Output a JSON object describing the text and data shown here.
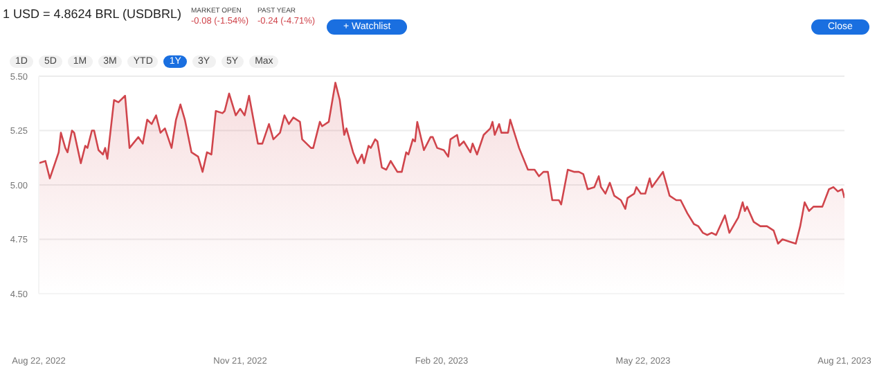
{
  "chart_data": {
    "type": "area",
    "title": "1 USD = 4.8624 BRL (USDBRL)",
    "annotations": [
      "MARKET OPEN",
      "-0.08 (-1.54%)",
      "PAST YEAR",
      "-0.24 (-4.71%)",
      "+ Watchlist",
      "Close",
      "1D",
      "5D",
      "1M",
      "3M",
      "YTD",
      "1Y",
      "3Y",
      "5Y",
      "Max"
    ],
    "x": [
      "2022-08-22",
      "2022-08-25",
      "2022-08-27",
      "2022-08-31",
      "2022-09-01",
      "2022-09-03",
      "2022-09-04",
      "2022-09-06",
      "2022-09-07",
      "2022-09-10",
      "2022-09-12",
      "2022-09-13",
      "2022-09-15",
      "2022-09-16",
      "2022-09-18",
      "2022-09-20",
      "2022-09-21",
      "2022-09-22",
      "2022-09-25",
      "2022-09-27",
      "2022-09-30",
      "2022-10-02",
      "2022-10-06",
      "2022-10-08",
      "2022-10-10",
      "2022-10-12",
      "2022-10-14",
      "2022-10-16",
      "2022-10-18",
      "2022-10-21",
      "2022-10-23",
      "2022-10-25",
      "2022-10-27",
      "2022-10-30",
      "2022-11-02",
      "2022-11-04",
      "2022-11-06",
      "2022-11-08",
      "2022-11-10",
      "2022-11-13",
      "2022-11-14",
      "2022-11-16",
      "2022-11-19",
      "2022-11-21",
      "2022-11-23",
      "2022-11-25",
      "2022-11-29",
      "2022-12-01",
      "2022-12-04",
      "2022-12-06",
      "2022-12-09",
      "2022-12-11",
      "2022-12-13",
      "2022-12-15",
      "2022-12-18",
      "2022-12-19",
      "2022-12-21",
      "2022-12-23",
      "2022-12-24",
      "2022-12-27",
      "2022-12-28",
      "2022-12-31",
      "2023-01-03",
      "2023-01-05",
      "2023-01-07",
      "2023-01-08",
      "2023-01-11",
      "2023-01-13",
      "2023-01-15",
      "2023-01-16",
      "2023-01-18",
      "2023-01-19",
      "2023-01-21",
      "2023-01-22",
      "2023-01-24",
      "2023-01-26",
      "2023-01-28",
      "2023-01-31",
      "2023-02-02",
      "2023-02-04",
      "2023-02-05",
      "2023-02-07",
      "2023-02-08",
      "2023-02-09",
      "2023-02-12",
      "2023-02-15",
      "2023-02-16",
      "2023-02-18",
      "2023-02-21",
      "2023-02-23",
      "2023-02-24",
      "2023-02-27",
      "2023-02-28",
      "2023-03-02",
      "2023-03-05",
      "2023-03-06",
      "2023-03-08",
      "2023-03-11",
      "2023-03-14",
      "2023-03-15",
      "2023-03-16",
      "2023-03-18",
      "2023-03-19",
      "2023-03-22",
      "2023-03-23",
      "2023-03-27",
      "2023-03-31",
      "2023-04-03",
      "2023-04-05",
      "2023-04-07",
      "2023-04-09",
      "2023-04-11",
      "2023-04-14",
      "2023-04-15",
      "2023-04-18",
      "2023-04-21",
      "2023-04-23",
      "2023-04-25",
      "2023-04-27",
      "2023-04-30",
      "2023-05-02",
      "2023-05-03",
      "2023-05-05",
      "2023-05-07",
      "2023-05-09",
      "2023-05-12",
      "2023-05-14",
      "2023-05-15",
      "2023-05-18",
      "2023-05-19",
      "2023-05-21",
      "2023-05-23",
      "2023-05-25",
      "2023-05-26",
      "2023-05-31",
      "2023-06-03",
      "2023-06-06",
      "2023-06-08",
      "2023-06-11",
      "2023-06-14",
      "2023-06-16",
      "2023-06-18",
      "2023-06-20",
      "2023-06-22",
      "2023-06-24",
      "2023-06-28",
      "2023-06-30",
      "2023-07-04",
      "2023-07-06",
      "2023-07-07",
      "2023-07-08",
      "2023-07-11",
      "2023-07-14",
      "2023-07-17",
      "2023-07-20",
      "2023-07-22",
      "2023-07-24",
      "2023-07-27",
      "2023-07-30",
      "2023-08-01",
      "2023-08-03",
      "2023-08-05",
      "2023-08-07",
      "2023-08-11",
      "2023-08-14",
      "2023-08-16",
      "2023-08-18",
      "2023-08-20",
      "2023-08-21"
    ],
    "series": [
      {
        "color": "#d0454c",
        "values": [
          5.1,
          5.11,
          5.03,
          5.15,
          5.24,
          5.17,
          5.15,
          5.25,
          5.24,
          5.1,
          5.18,
          5.17,
          5.25,
          5.25,
          5.16,
          5.14,
          5.17,
          5.12,
          5.39,
          5.38,
          5.41,
          5.17,
          5.22,
          5.19,
          5.3,
          5.28,
          5.32,
          5.24,
          5.26,
          5.17,
          5.3,
          5.37,
          5.3,
          5.15,
          5.13,
          5.06,
          5.15,
          5.14,
          5.34,
          5.33,
          5.34,
          5.42,
          5.32,
          5.35,
          5.32,
          5.41,
          5.19,
          5.19,
          5.28,
          5.21,
          5.24,
          5.32,
          5.28,
          5.31,
          5.29,
          5.21,
          5.19,
          5.17,
          5.17,
          5.29,
          5.27,
          5.29,
          5.47,
          5.39,
          5.23,
          5.26,
          5.15,
          5.1,
          5.14,
          5.1,
          5.18,
          5.17,
          5.21,
          5.2,
          5.08,
          5.07,
          5.11,
          5.06,
          5.06,
          5.15,
          5.14,
          5.21,
          5.2,
          5.29,
          5.16,
          5.22,
          5.22,
          5.17,
          5.16,
          5.13,
          5.21,
          5.23,
          5.18,
          5.2,
          5.15,
          5.19,
          5.14,
          5.23,
          5.26,
          5.29,
          5.23,
          5.28,
          5.24,
          5.24,
          5.3,
          5.17,
          5.07,
          5.07,
          5.04,
          5.06,
          5.06,
          4.93,
          4.93,
          4.91,
          5.07,
          5.06,
          5.06,
          5.05,
          4.98,
          4.99,
          5.04,
          4.99,
          4.96,
          5.01,
          4.95,
          4.93,
          4.89,
          4.94,
          4.96,
          4.99,
          4.96,
          4.96,
          5.03,
          4.99,
          5.06,
          4.95,
          4.93,
          4.93,
          4.87,
          4.82,
          4.81,
          4.78,
          4.77,
          4.78,
          4.77,
          4.86,
          4.78,
          4.85,
          4.92,
          4.88,
          4.9,
          4.83,
          4.81,
          4.81,
          4.79,
          4.73,
          4.75,
          4.74,
          4.73,
          4.81,
          4.92,
          4.88,
          4.9,
          4.9,
          4.98,
          4.99,
          4.97,
          4.98,
          4.94
        ]
      }
    ],
    "xlim": [
      "2022-08-22",
      "2023-08-21"
    ],
    "xticks": [
      {
        "value": "2022-08-22",
        "label": "Aug 22, 2022"
      },
      {
        "value": "2022-11-21",
        "label": "Nov 21, 2022"
      },
      {
        "value": "2023-02-20",
        "label": "Feb 20, 2023"
      },
      {
        "value": "2023-05-22",
        "label": "May 22, 2023"
      },
      {
        "value": "2023-08-21",
        "label": "Aug 21, 2023"
      }
    ],
    "ylim": [
      4.5,
      5.5
    ],
    "yticks": [
      {
        "value": 4.5,
        "label": "4.50"
      },
      {
        "value": 4.75,
        "label": "4.75"
      },
      {
        "value": 5,
        "label": "5.00"
      },
      {
        "value": 5.25,
        "label": "5.25"
      },
      {
        "value": 5.5,
        "label": "5.50"
      }
    ],
    "grid": "y",
    "legend": false,
    "marker": "none",
    "line_style": "solid"
  }
}
